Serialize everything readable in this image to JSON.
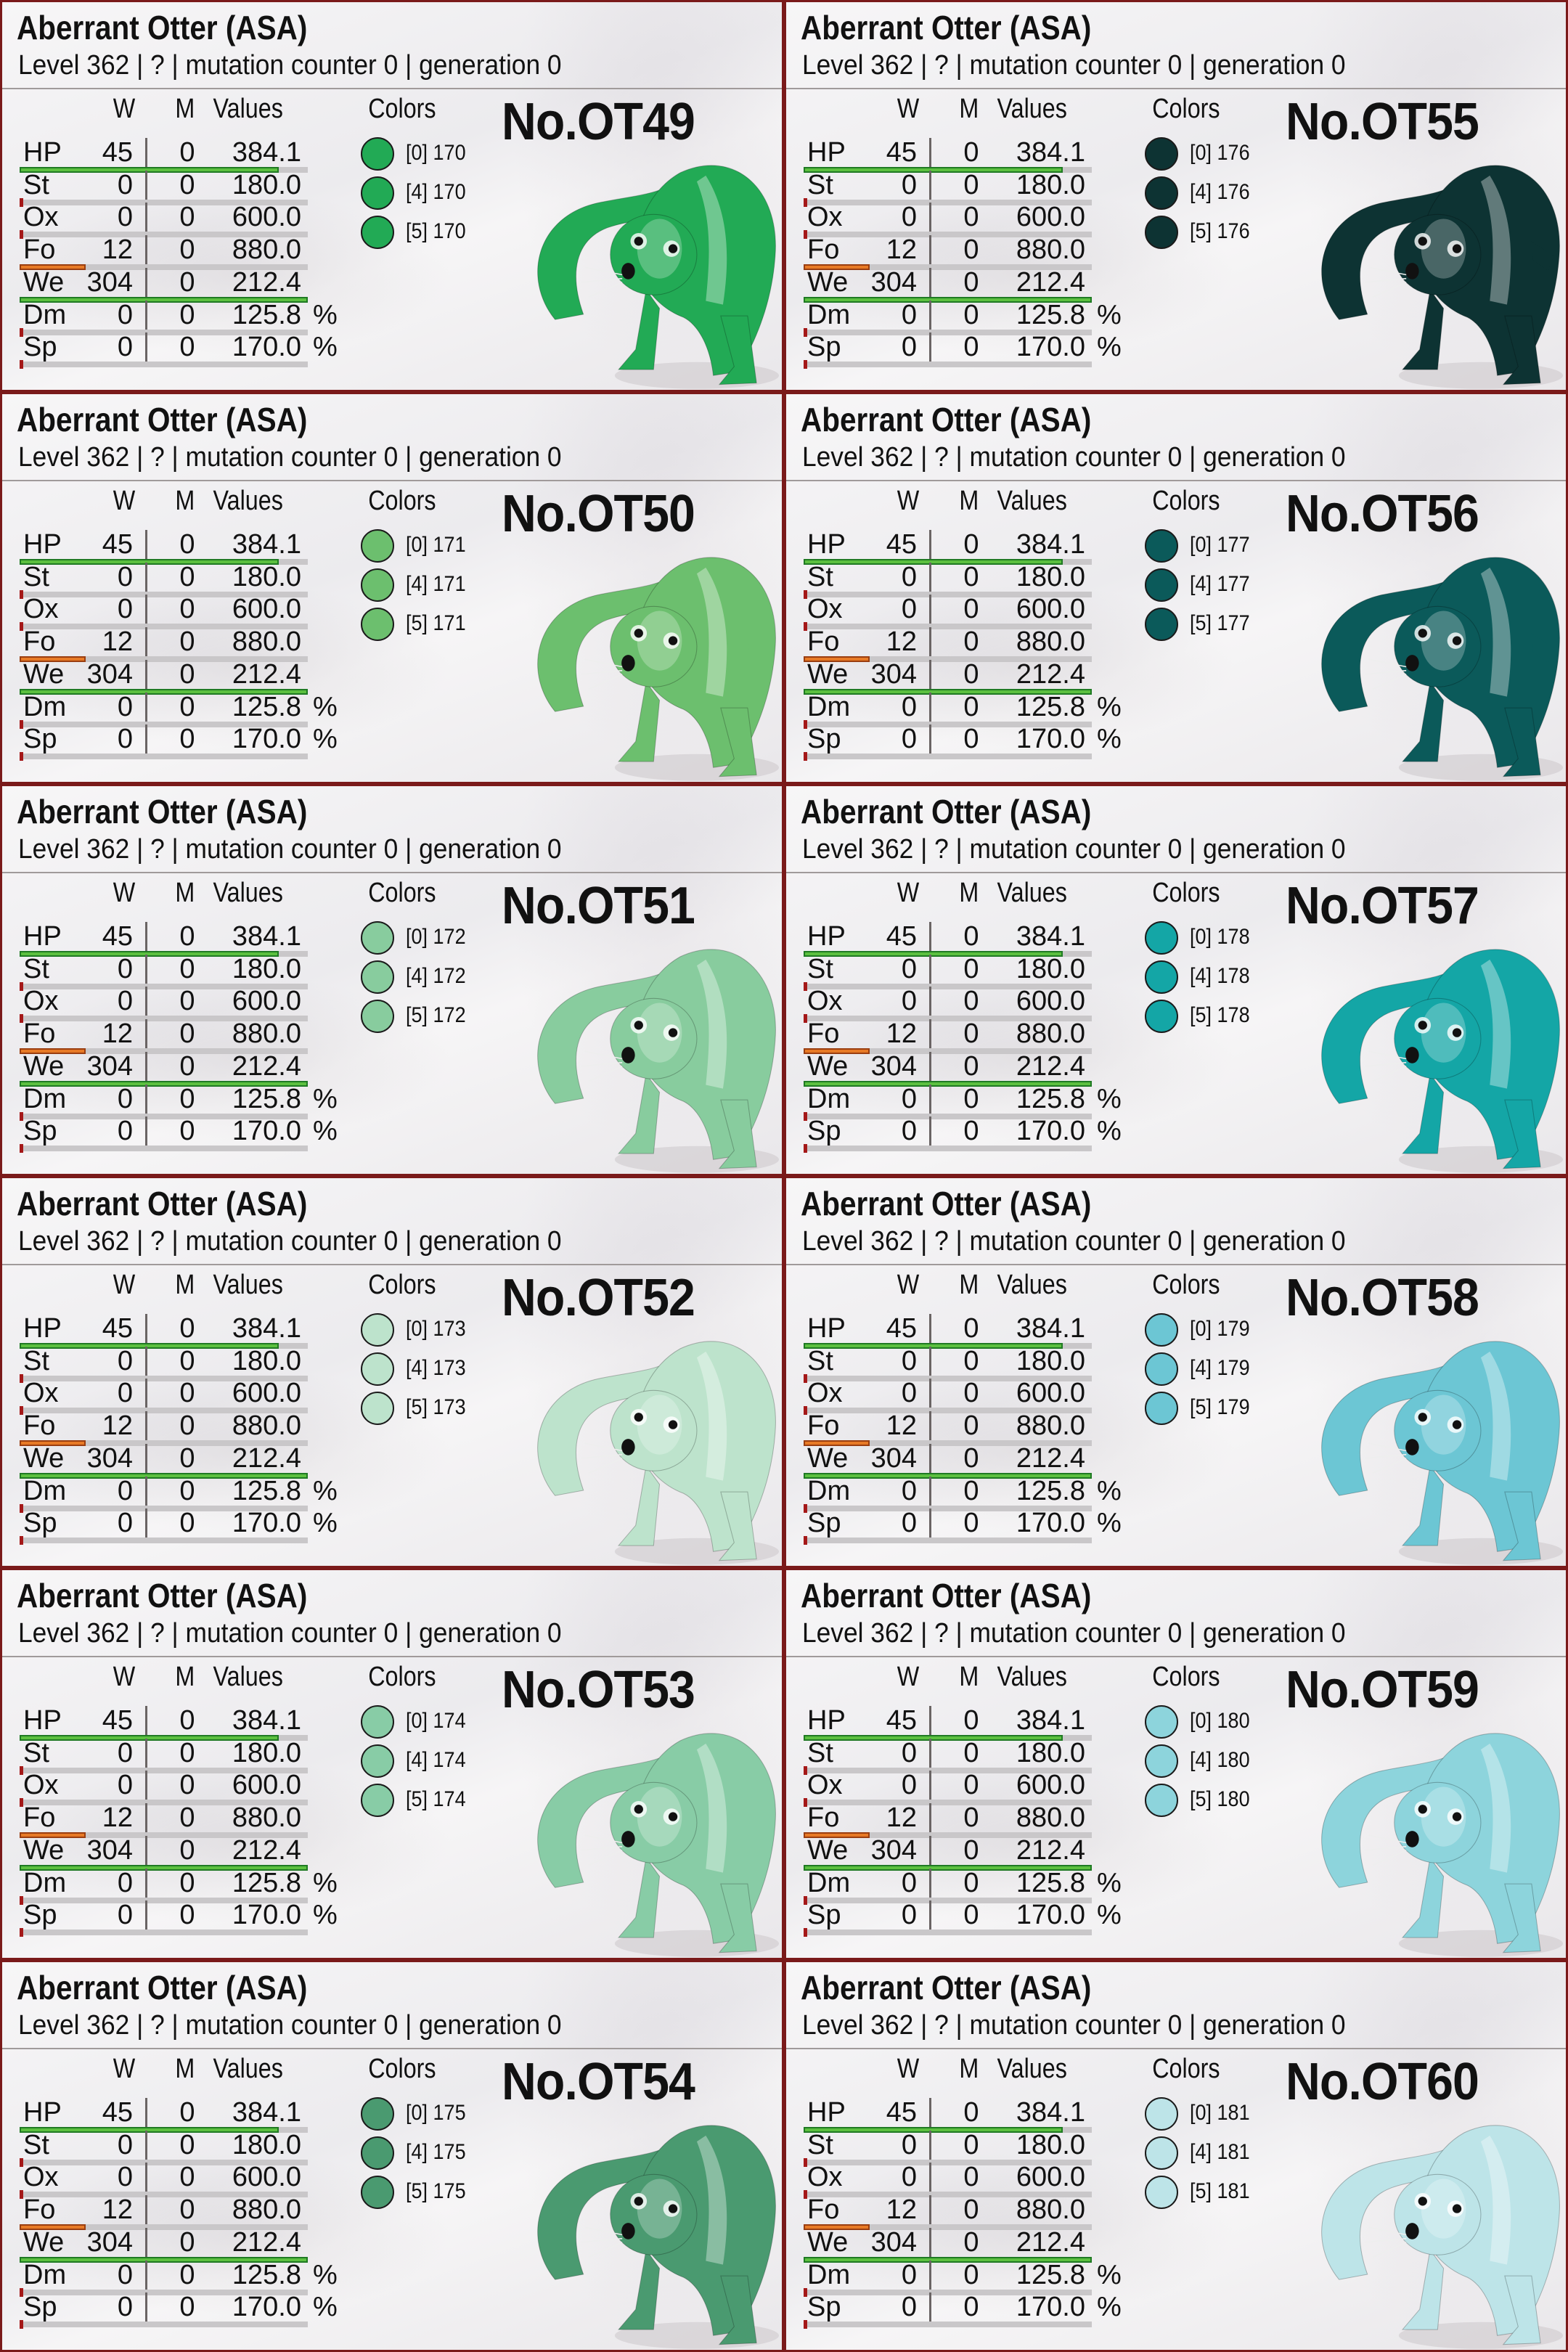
{
  "card_title": "Aberrant Otter (ASA)",
  "card_subtitle": "Level 362 | ? | mutation counter 0 | generation 0",
  "headers": {
    "w": "W",
    "m": "M",
    "values": "Values",
    "colors": "Colors"
  },
  "stats": [
    {
      "label": "HP",
      "w": "45",
      "m": "0",
      "value": "384.1",
      "unit": "",
      "bar_fill": 0.9,
      "bar_color": "green"
    },
    {
      "label": "St",
      "w": "0",
      "m": "0",
      "value": "180.0",
      "unit": "",
      "bar_fill": 0,
      "bar_color": "none"
    },
    {
      "label": "Ox",
      "w": "0",
      "m": "0",
      "value": "600.0",
      "unit": "",
      "bar_fill": 0,
      "bar_color": "none"
    },
    {
      "label": "Fo",
      "w": "12",
      "m": "0",
      "value": "880.0",
      "unit": "",
      "bar_fill": 0.23,
      "bar_color": "orange"
    },
    {
      "label": "We",
      "w": "304",
      "m": "0",
      "value": "212.4",
      "unit": "",
      "bar_fill": 1.0,
      "bar_color": "green"
    },
    {
      "label": "Dm",
      "w": "0",
      "m": "0",
      "value": "125.8",
      "unit": "%",
      "bar_fill": 0,
      "bar_color": "none"
    },
    {
      "label": "Sp",
      "w": "0",
      "m": "0",
      "value": "170.0",
      "unit": "%",
      "bar_fill": 0,
      "bar_color": "none"
    }
  ],
  "color_regions": [
    "[0]",
    "[4]",
    "[5]"
  ],
  "cells": [
    {
      "number": "No.OT49",
      "color_id": "170",
      "color_hex": "#22aa55"
    },
    {
      "number": "No.OT55",
      "color_id": "176",
      "color_hex": "#0d3333"
    },
    {
      "number": "No.OT50",
      "color_id": "171",
      "color_hex": "#6cbf6e"
    },
    {
      "number": "No.OT56",
      "color_id": "177",
      "color_hex": "#0b5a5a"
    },
    {
      "number": "No.OT51",
      "color_id": "172",
      "color_hex": "#88cc9e"
    },
    {
      "number": "No.OT57",
      "color_id": "178",
      "color_hex": "#14a6a6"
    },
    {
      "number": "No.OT52",
      "color_id": "173",
      "color_hex": "#bde3cc"
    },
    {
      "number": "No.OT58",
      "color_id": "179",
      "color_hex": "#6cc6d4"
    },
    {
      "number": "No.OT53",
      "color_id": "174",
      "color_hex": "#88cca6"
    },
    {
      "number": "No.OT59",
      "color_id": "180",
      "color_hex": "#8dd4dc"
    },
    {
      "number": "No.OT54",
      "color_id": "175",
      "color_hex": "#4a9a70"
    },
    {
      "number": "No.OT60",
      "color_id": "181",
      "color_hex": "#bde4e8"
    }
  ]
}
